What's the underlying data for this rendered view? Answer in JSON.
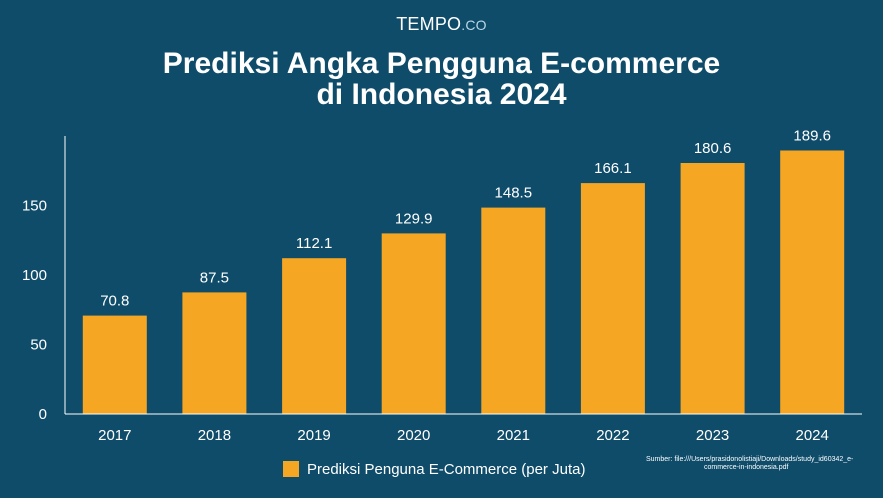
{
  "brand": {
    "name": "TEMPO",
    "suffix": ".CO"
  },
  "header": {
    "title": "Prediksi Angka Pengguna E-commerce\ndi Indonesia 2024"
  },
  "legend": {
    "label": "Prediksi Penguna E-Commerce (per Juta)",
    "color": "#F5A623"
  },
  "source": {
    "line1": "Sumber: file:///Users/prasidonolistiaji/Downloads/study_id60342_e-",
    "line2": "commerce-in-indonesia.pdf"
  },
  "colors": {
    "background": "#0F4C6A",
    "bar": "#F5A623",
    "text": "#FFFFFF"
  },
  "chart_data": {
    "type": "bar",
    "categories": [
      "2017",
      "2018",
      "2019",
      "2020",
      "2021",
      "2022",
      "2023",
      "2024"
    ],
    "values": [
      70.8,
      87.5,
      112.1,
      129.9,
      148.5,
      166.1,
      180.6,
      189.6
    ],
    "title": "Prediksi Angka Pengguna E-commerce di Indonesia 2024",
    "xlabel": "",
    "ylabel": "",
    "ylim": [
      0,
      200
    ],
    "yticks": [
      0,
      50,
      100,
      150
    ],
    "grid": false,
    "legend_position": "bottom",
    "series": [
      {
        "name": "Prediksi Penguna E-Commerce (per Juta)",
        "values": [
          70.8,
          87.5,
          112.1,
          129.9,
          148.5,
          166.1,
          180.6,
          189.6
        ]
      }
    ]
  }
}
